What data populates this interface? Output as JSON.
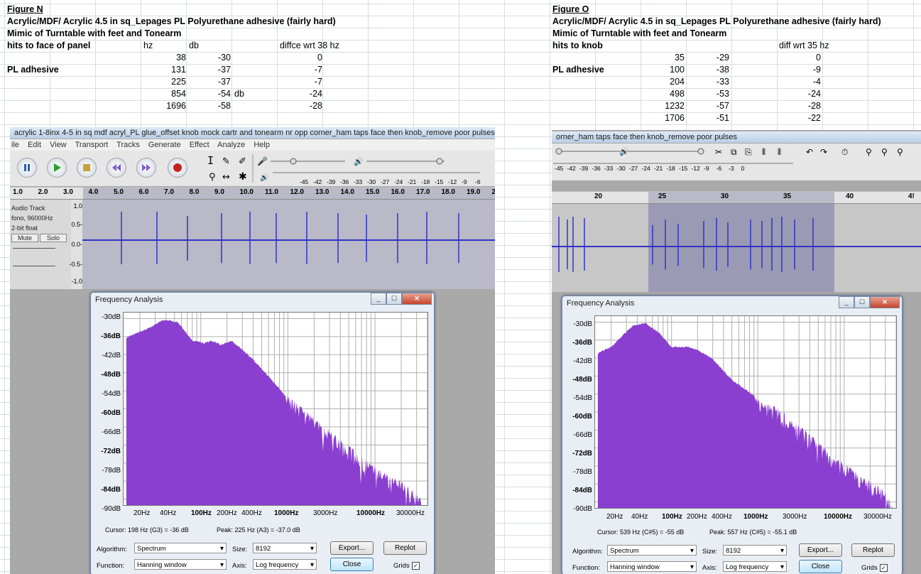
{
  "left": {
    "figure_label": "Figure N",
    "line1": "Acrylic/MDF/ Acrylic 4.5 in sq_Lepages PL Polyurethane adhesive (fairly hard)",
    "line2": "Mimic of Turntable with feet and Tonearm",
    "header": {
      "label": "hits to face of panel",
      "hz": "hz",
      "db": "db",
      "diff": "diffce wrt 38 hz"
    },
    "row_label": "PL adhesive",
    "rows": [
      {
        "hz": "38",
        "db": "-30",
        "unit": "",
        "diff": "0"
      },
      {
        "hz": "131",
        "db": "-37",
        "unit": "",
        "diff": "-7"
      },
      {
        "hz": "225",
        "db": "-37",
        "unit": "",
        "diff": "-7"
      },
      {
        "hz": "854",
        "db": "-54",
        "unit": "db",
        "diff": "-24"
      },
      {
        "hz": "1696",
        "db": "-58",
        "unit": "",
        "diff": "-28"
      }
    ],
    "audacity": {
      "title": "acrylic 1-8inx 4-5 in sq mdf acryl_PL glue_offset knob mock cartr and tonearm nr opp corner_ham taps face then knob_remove poor pulses",
      "menu": [
        "ile",
        "Edit",
        "View",
        "Transport",
        "Tracks",
        "Generate",
        "Effect",
        "Analyze",
        "Help"
      ],
      "meter_ticks": [
        "-45",
        "-42",
        "-39",
        "-36",
        "-33",
        "-30",
        "-27",
        "-24",
        "-21",
        "-18",
        "-15",
        "-12",
        "-9",
        "-6"
      ],
      "ruler": [
        "1.0",
        "2.0",
        "3.0",
        "4.0",
        "5.0",
        "6.0",
        "7.0",
        "8.0",
        "9.0",
        "10.0",
        "11.0",
        "12.0",
        "13.0",
        "14.0",
        "15.0",
        "16.0",
        "17.0",
        "18.0",
        "19.0",
        "2"
      ],
      "track": {
        "name": "Audio Track",
        "format": "fono, 96000Hz",
        "bits": "2-bit float",
        "mute": "Mute",
        "solo": "Solo"
      },
      "scale": [
        "1.0",
        "0.5-",
        "0.0-",
        "-0.5-",
        "-1.0"
      ]
    },
    "dialog": {
      "title": "Frequency Analysis",
      "ylabels": [
        "-30dB",
        "-36dB",
        "-42dB",
        "-48dB",
        "-54dB",
        "-60dB",
        "-66dB",
        "-72dB",
        "-78dB",
        "-84dB",
        "-90dB"
      ],
      "xlabels": [
        "20Hz",
        "40Hz",
        "100Hz",
        "200Hz",
        "400Hz",
        "1000Hz",
        "3000Hz",
        "10000Hz",
        "30000Hz"
      ],
      "cursor": "Cursor: 198 Hz (G3) = -36 dB",
      "peak": "Peak: 225 Hz (A3) = -37.0 dB",
      "algorithm_label": "Algorithm:",
      "algorithm": "Spectrum",
      "size_label": "Size:",
      "size": "8192",
      "function_label": "Function:",
      "function": "Hanning window",
      "axis_label": "Axis:",
      "axis": "Log frequency",
      "export": "Export...",
      "replot": "Replot",
      "close": "Close",
      "grids": "Grids"
    }
  },
  "right": {
    "figure_label": "Figure O",
    "line1": "Acrylic/MDF/ Acrylic 4.5 in sq_Lepages PL Polyurethane adhesive (fairly hard)",
    "line2": "Mimic of Turntable with feet and Tonearm",
    "header": {
      "label": "hits to knob",
      "diff": "diff wrt 35 hz"
    },
    "row_label": "PL adhesive",
    "rows": [
      {
        "hz": "35",
        "db": "-29",
        "diff": "0"
      },
      {
        "hz": "100",
        "db": "-38",
        "diff": "-9"
      },
      {
        "hz": "204",
        "db": "-33",
        "diff": "-4"
      },
      {
        "hz": "498",
        "db": "-53",
        "diff": "-24"
      },
      {
        "hz": "1232",
        "db": "-57",
        "diff": "-28"
      },
      {
        "hz": "1706",
        "db": "-51",
        "diff": "-22"
      }
    ],
    "audacity": {
      "title": "orner_ham taps face then knob_remove poor pulses",
      "meter_ticks": [
        "-45",
        "-42",
        "-39",
        "-36",
        "-33",
        "-30",
        "-27",
        "-24",
        "-21",
        "-18",
        "-15",
        "-12",
        "-9",
        "-6",
        "-3",
        "0"
      ],
      "ruler": [
        "20",
        "25",
        "30",
        "35",
        "40",
        "4!"
      ]
    },
    "dialog": {
      "title": "Frequency Analysis",
      "ylabels": [
        "-30dB",
        "-36dB",
        "-42dB",
        "-48dB",
        "-54dB",
        "-60dB",
        "-66dB",
        "-72dB",
        "-78dB",
        "-84dB",
        "-90dB"
      ],
      "xlabels": [
        "20Hz",
        "40Hz",
        "100Hz",
        "200Hz",
        "400Hz",
        "1000Hz",
        "3000Hz",
        "10000Hz",
        "30000Hz"
      ],
      "cursor": "Cursor: 539 Hz (C#5) = -55 dB",
      "peak": "Peak: 557 Hz (C#5) = -55.1 dB",
      "algorithm_label": "Algorithm:",
      "algorithm": "Spectrum",
      "size_label": "Size:",
      "size": "8192",
      "function_label": "Function:",
      "function": "Hanning window",
      "axis_label": "Axis:",
      "axis": "Log frequency",
      "export": "Export...",
      "replot": "Replot",
      "close": "Close",
      "grids": "Grids"
    }
  },
  "colors": {
    "spectrum": "#8a3fd0",
    "wave": "#3232c8",
    "selection": "#9a9ab4"
  }
}
